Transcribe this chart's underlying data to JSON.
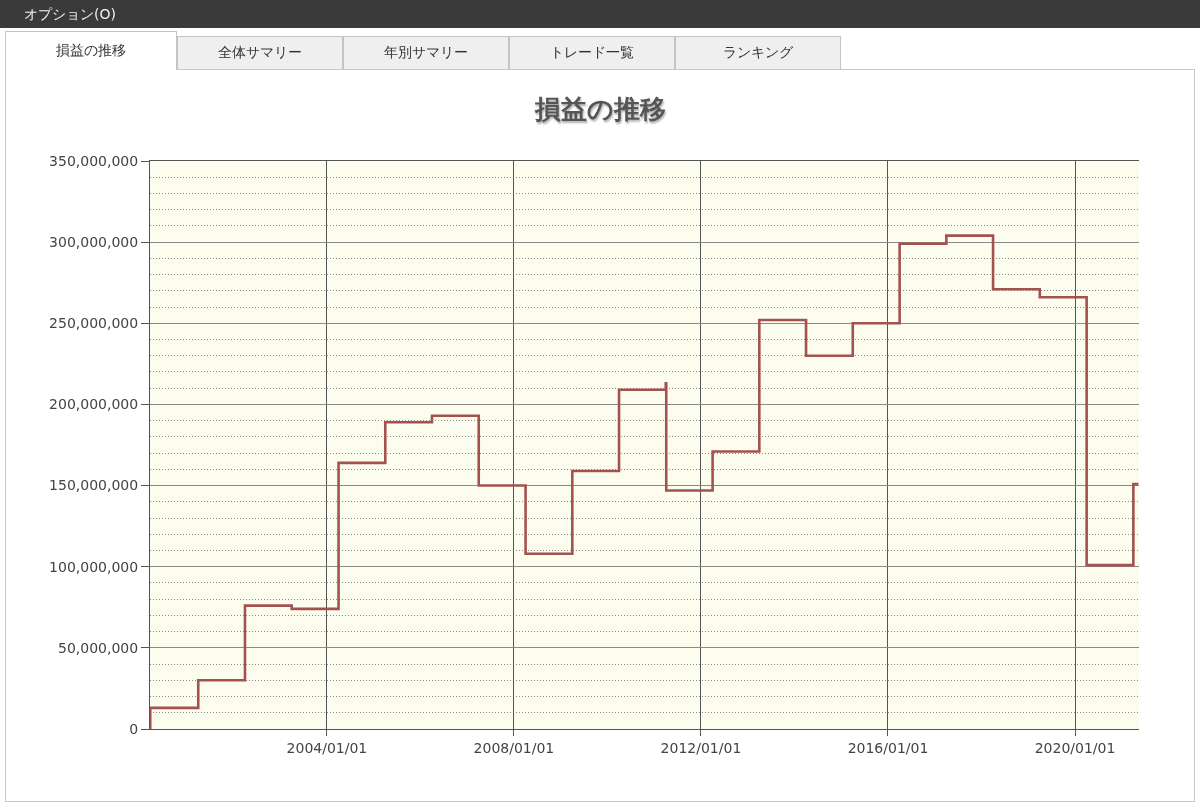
{
  "chart_data": {
    "type": "step",
    "title": "損益の推移",
    "annotations": [
      "オプション(O)",
      "損益の推移",
      "全体サマリー",
      "年別サマリー",
      "トレード一覧",
      "ランキング"
    ],
    "x": [
      "2000-03-21",
      "2000-03-22",
      "2001-04-01",
      "2002-04-01",
      "2003-04-01",
      "2004-04-01",
      "2005-04-01",
      "2006-04-01",
      "2007-04-01",
      "2008-04-01",
      "2009-04-01",
      "2010-04-01",
      "2011-04-01",
      "2011-04-05",
      "2012-04-01",
      "2013-04-01",
      "2014-04-01",
      "2015-04-01",
      "2016-04-01",
      "2017-04-01",
      "2018-04-01",
      "2019-04-01",
      "2020-04-01",
      "2021-04-01",
      "2021-05-10"
    ],
    "values": [
      0,
      13000000,
      30000000,
      76000000,
      74000000,
      164000000,
      189000000,
      193000000,
      150000000,
      108000000,
      159000000,
      209000000,
      213000000,
      147000000,
      171000000,
      252000000,
      230000000,
      250000000,
      299000000,
      304000000,
      271000000,
      266000000,
      101000000,
      151000000,
      151000000
    ],
    "color": "#a3524f",
    "xlim": [
      "2000-03-20",
      "2021-05-15"
    ],
    "xticks": [
      {
        "value": "2004-01-01",
        "label": "2004/01/01"
      },
      {
        "value": "2008-01-01",
        "label": "2008/01/01"
      },
      {
        "value": "2012-01-01",
        "label": "2012/01/01"
      },
      {
        "value": "2016-01-01",
        "label": "2016/01/01"
      },
      {
        "value": "2020-01-01",
        "label": "2020/01/01"
      }
    ],
    "ylim": [
      0,
      350000000
    ],
    "yticks": [
      {
        "value": 0,
        "label": "0"
      },
      {
        "value": 10000000,
        "label": null
      },
      {
        "value": 20000000,
        "label": null
      },
      {
        "value": 30000000,
        "label": null
      },
      {
        "value": 40000000,
        "label": null
      },
      {
        "value": 50000000,
        "label": "50,000,000"
      },
      {
        "value": 60000000,
        "label": null
      },
      {
        "value": 70000000,
        "label": null
      },
      {
        "value": 80000000,
        "label": null
      },
      {
        "value": 90000000,
        "label": null
      },
      {
        "value": 100000000,
        "label": "100,000,000"
      },
      {
        "value": 110000000,
        "label": null
      },
      {
        "value": 120000000,
        "label": null
      },
      {
        "value": 130000000,
        "label": null
      },
      {
        "value": 140000000,
        "label": null
      },
      {
        "value": 150000000,
        "label": "150,000,000"
      },
      {
        "value": 160000000,
        "label": null
      },
      {
        "value": 170000000,
        "label": null
      },
      {
        "value": 180000000,
        "label": null
      },
      {
        "value": 190000000,
        "label": null
      },
      {
        "value": 200000000,
        "label": "200,000,000"
      },
      {
        "value": 210000000,
        "label": null
      },
      {
        "value": 220000000,
        "label": null
      },
      {
        "value": 230000000,
        "label": null
      },
      {
        "value": 240000000,
        "label": null
      },
      {
        "value": 250000000,
        "label": "250,000,000"
      },
      {
        "value": 260000000,
        "label": null
      },
      {
        "value": 270000000,
        "label": null
      },
      {
        "value": 280000000,
        "label": null
      },
      {
        "value": 290000000,
        "label": null
      },
      {
        "value": 300000000,
        "label": "300,000,000"
      },
      {
        "value": 310000000,
        "label": null
      },
      {
        "value": 320000000,
        "label": null
      },
      {
        "value": 330000000,
        "label": null
      },
      {
        "value": 340000000,
        "label": null
      },
      {
        "value": 350000000,
        "label": "350,000,000"
      }
    ],
    "grid": true
  }
}
